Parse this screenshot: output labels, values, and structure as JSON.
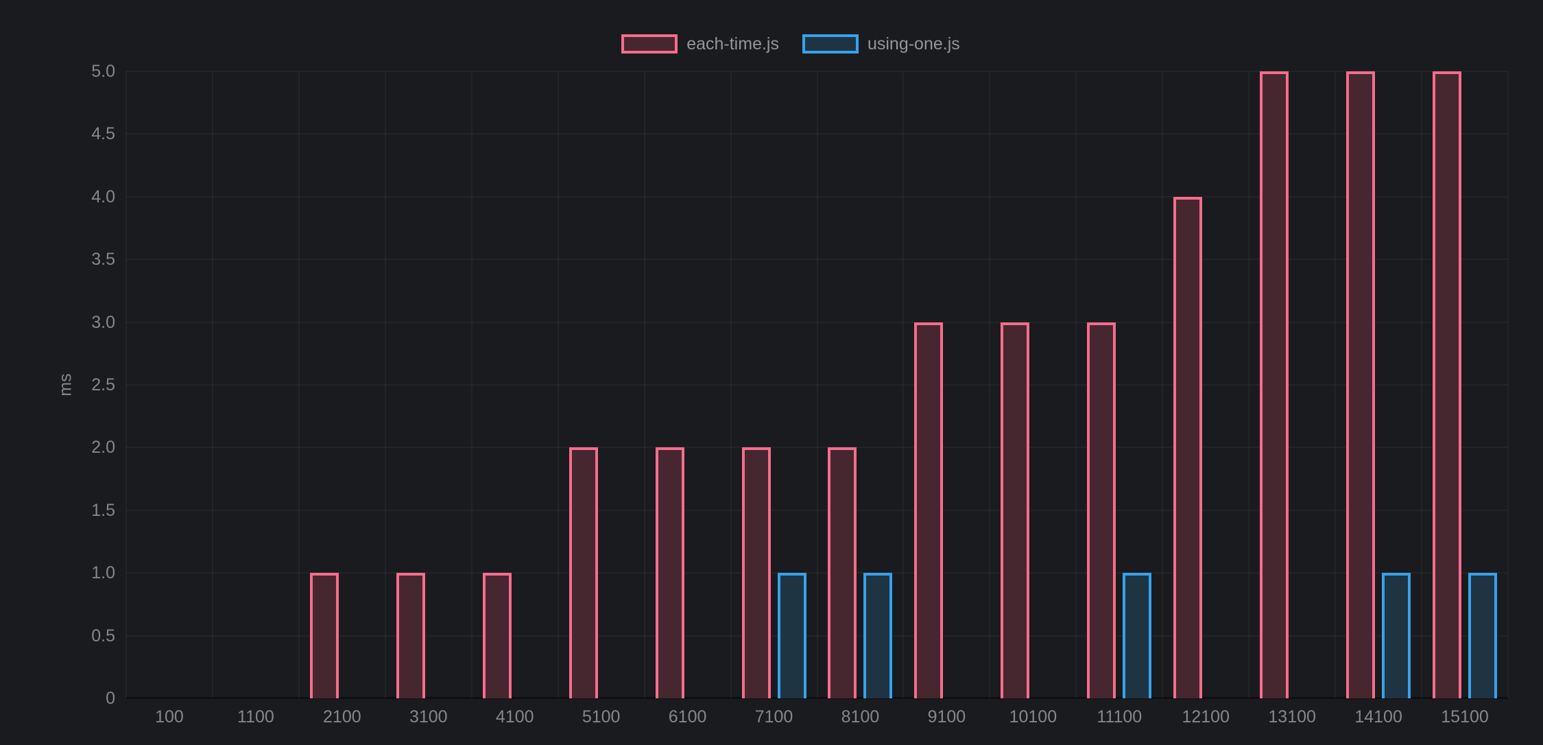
{
  "chart_data": {
    "type": "bar",
    "title": "",
    "xlabel": "",
    "ylabel": "ms",
    "ylim": [
      0,
      5
    ],
    "ytick_step": 0.5,
    "yticks_top_to_bottom": [
      "5.0",
      "4.5",
      "4.0",
      "3.5",
      "3.0",
      "2.5",
      "2.0",
      "1.5",
      "1.0",
      "0.5",
      "0"
    ],
    "grid": true,
    "legend_position": "top",
    "categories": [
      "100",
      "1100",
      "2100",
      "3100",
      "4100",
      "5100",
      "6100",
      "7100",
      "8100",
      "9100",
      "10100",
      "11100",
      "12100",
      "13100",
      "14100",
      "15100"
    ],
    "series": [
      {
        "name": "each-time.js",
        "values": [
          0,
          0,
          1,
          1,
          1,
          2,
          2,
          2,
          2,
          3,
          3,
          3,
          4,
          5,
          5,
          5
        ],
        "border_color": "#f66d8c",
        "fill_color": "#462730"
      },
      {
        "name": "using-one.js",
        "values": [
          0,
          0,
          0,
          0,
          0,
          0,
          0,
          1,
          1,
          0,
          0,
          1,
          0,
          0,
          1,
          1
        ],
        "border_color": "#36a2eb",
        "fill_color": "#1f3443"
      }
    ],
    "unit": "ms"
  },
  "colors": {
    "background": "#1a1b1e",
    "gridline": "rgba(255,255,255,0.045)",
    "axis_baseline": "#0e0f11",
    "tick_text": "#85878a",
    "legend_text": "#939598",
    "series_each_time_border": "#f66d8c",
    "series_each_time_fill": "#462730",
    "series_using_one_border": "#36a2eb",
    "series_using_one_fill": "#1f3443"
  }
}
